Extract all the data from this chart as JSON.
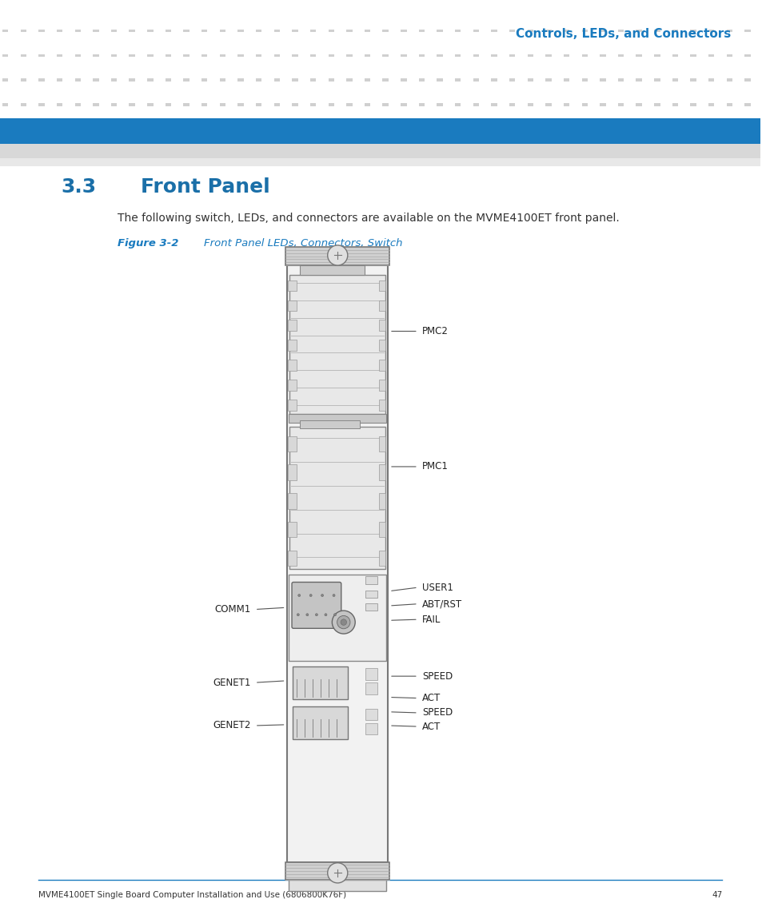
{
  "page_title": "Controls, LEDs, and Connectors",
  "section_number": "3.3",
  "section_title": "Front Panel",
  "body_text": "The following switch, LEDs, and connectors are available on the MVME4100ET front panel.",
  "figure_label": "Figure 3-2",
  "figure_caption": "Front Panel LEDs, Connectors, Switch",
  "footer_text": "MVME4100ET Single Board Computer Installation and Use (6806800K76F)",
  "footer_page": "47",
  "blue_bar_color": "#1a7bbf",
  "title_color": "#1a7bbf",
  "section_title_color": "#1a6fa8",
  "figure_caption_color": "#1a7bbf",
  "body_text_color": "#333333",
  "label_color": "#222222"
}
